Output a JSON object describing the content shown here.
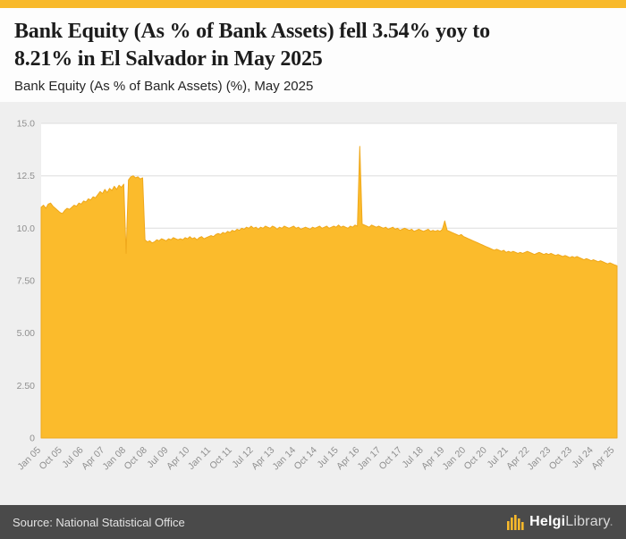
{
  "colors": {
    "accent": "#F8B92B",
    "footer_bg": "#4A4A4A",
    "plot_bg": "#FFFFFF",
    "grid": "#DEDEDE",
    "tick_text": "#8F8F8F"
  },
  "header": {
    "title_line1": "Bank Equity (As % of Bank Assets) fell 3.54% yoy to",
    "title_line2": "8.21% in El Salvador in May 2025",
    "subtitle": "Bank Equity (As % of Bank Assets) (%), May 2025"
  },
  "footer": {
    "source": "Source: National Statistical Office",
    "logo_helgi": "Helgi",
    "logo_library": "Library",
    "logo_dot": "."
  },
  "chart_data": {
    "type": "area",
    "title": "Bank Equity (As % of Bank Assets) fell 3.54% yoy to 8.21% in El Salvador in May 2025",
    "series_name": "Bank Equity (As % of Bank Assets) (%)",
    "country": "El Salvador",
    "latest_period": "May 2025",
    "latest_value": 8.21,
    "yoy_change_pct": -3.54,
    "freq": "monthly",
    "x_start": "Jan 2005",
    "x_end": "May 2025",
    "ylim": [
      0,
      15
    ],
    "y_ticks": [
      0,
      2.5,
      5,
      7.5,
      10,
      12.5,
      15
    ],
    "y_tick_labels": [
      "0",
      "2.50",
      "5.00",
      "7.50",
      "10.0",
      "12.5",
      "15.0"
    ],
    "x_tick_indices": [
      0,
      9,
      18,
      27,
      36,
      45,
      54,
      63,
      72,
      81,
      90,
      99,
      108,
      117,
      126,
      135,
      144,
      153,
      162,
      171,
      180,
      189,
      198,
      207,
      216,
      225,
      234,
      243
    ],
    "x_tick_labels": [
      "Jan 05",
      "Oct 05",
      "Jul 06",
      "Apr 07",
      "Jan 08",
      "Oct 08",
      "Jul 09",
      "Apr 10",
      "Jan 11",
      "Oct 11",
      "Jul 12",
      "Apr 13",
      "Jan 14",
      "Oct 14",
      "Jul 15",
      "Apr 16",
      "Jan 17",
      "Oct 17",
      "Jul 18",
      "Apr 19",
      "Jan 20",
      "Oct 20",
      "Jul 21",
      "Apr 22",
      "Jan 23",
      "Oct 23",
      "Jul 24",
      "Apr 25"
    ],
    "color": "#FBBB2C",
    "stroke": "#EFA81C",
    "grid_on": true,
    "legend": "none",
    "values": [
      11.0,
      11.1,
      10.95,
      11.15,
      11.2,
      11.05,
      10.95,
      10.85,
      10.75,
      10.7,
      10.85,
      10.95,
      10.9,
      11.0,
      11.1,
      11.05,
      11.2,
      11.15,
      11.3,
      11.25,
      11.4,
      11.35,
      11.5,
      11.45,
      11.6,
      11.75,
      11.65,
      11.85,
      11.7,
      11.9,
      11.8,
      12.0,
      11.85,
      12.05,
      11.95,
      12.1,
      8.8,
      12.3,
      12.45,
      12.5,
      12.4,
      12.45,
      12.35,
      12.4,
      9.45,
      9.35,
      9.4,
      9.3,
      9.35,
      9.45,
      9.4,
      9.5,
      9.45,
      9.4,
      9.5,
      9.45,
      9.55,
      9.5,
      9.45,
      9.5,
      9.45,
      9.55,
      9.5,
      9.6,
      9.5,
      9.55,
      9.45,
      9.55,
      9.6,
      9.5,
      9.55,
      9.6,
      9.65,
      9.6,
      9.7,
      9.75,
      9.7,
      9.8,
      9.75,
      9.85,
      9.8,
      9.9,
      9.85,
      9.95,
      9.9,
      10.0,
      9.95,
      10.05,
      10.0,
      10.1,
      10.0,
      10.05,
      9.95,
      10.05,
      10.0,
      10.1,
      10.05,
      10.0,
      10.1,
      10.05,
      9.95,
      10.05,
      10.0,
      10.1,
      10.05,
      10.0,
      10.05,
      10.1,
      10.0,
      10.05,
      9.95,
      10.0,
      10.05,
      10.0,
      9.95,
      10.05,
      10.0,
      10.05,
      10.1,
      10.0,
      10.05,
      10.1,
      10.0,
      10.05,
      10.1,
      10.05,
      10.15,
      10.05,
      10.1,
      10.05,
      10.0,
      10.1,
      10.05,
      10.15,
      10.1,
      13.9,
      10.2,
      10.15,
      10.1,
      10.05,
      10.15,
      10.1,
      10.05,
      10.1,
      10.05,
      10.0,
      10.05,
      9.95,
      10.0,
      10.05,
      9.95,
      10.0,
      9.9,
      9.95,
      10.0,
      9.95,
      9.9,
      9.95,
      9.85,
      9.9,
      9.95,
      9.9,
      9.85,
      9.9,
      9.95,
      9.85,
      9.9,
      9.85,
      9.9,
      9.85,
      9.95,
      10.35,
      9.9,
      9.85,
      9.8,
      9.75,
      9.7,
      9.65,
      9.7,
      9.6,
      9.55,
      9.5,
      9.45,
      9.4,
      9.35,
      9.3,
      9.25,
      9.2,
      9.15,
      9.1,
      9.05,
      9.0,
      8.95,
      9.0,
      8.95,
      8.9,
      8.95,
      8.85,
      8.9,
      8.85,
      8.9,
      8.85,
      8.8,
      8.85,
      8.8,
      8.85,
      8.9,
      8.85,
      8.8,
      8.75,
      8.8,
      8.85,
      8.8,
      8.75,
      8.8,
      8.75,
      8.8,
      8.75,
      8.7,
      8.75,
      8.7,
      8.65,
      8.7,
      8.65,
      8.6,
      8.65,
      8.6,
      8.65,
      8.6,
      8.55,
      8.5,
      8.55,
      8.51,
      8.45,
      8.5,
      8.45,
      8.4,
      8.45,
      8.4,
      8.35,
      8.3,
      8.35,
      8.3,
      8.25,
      8.21
    ]
  }
}
